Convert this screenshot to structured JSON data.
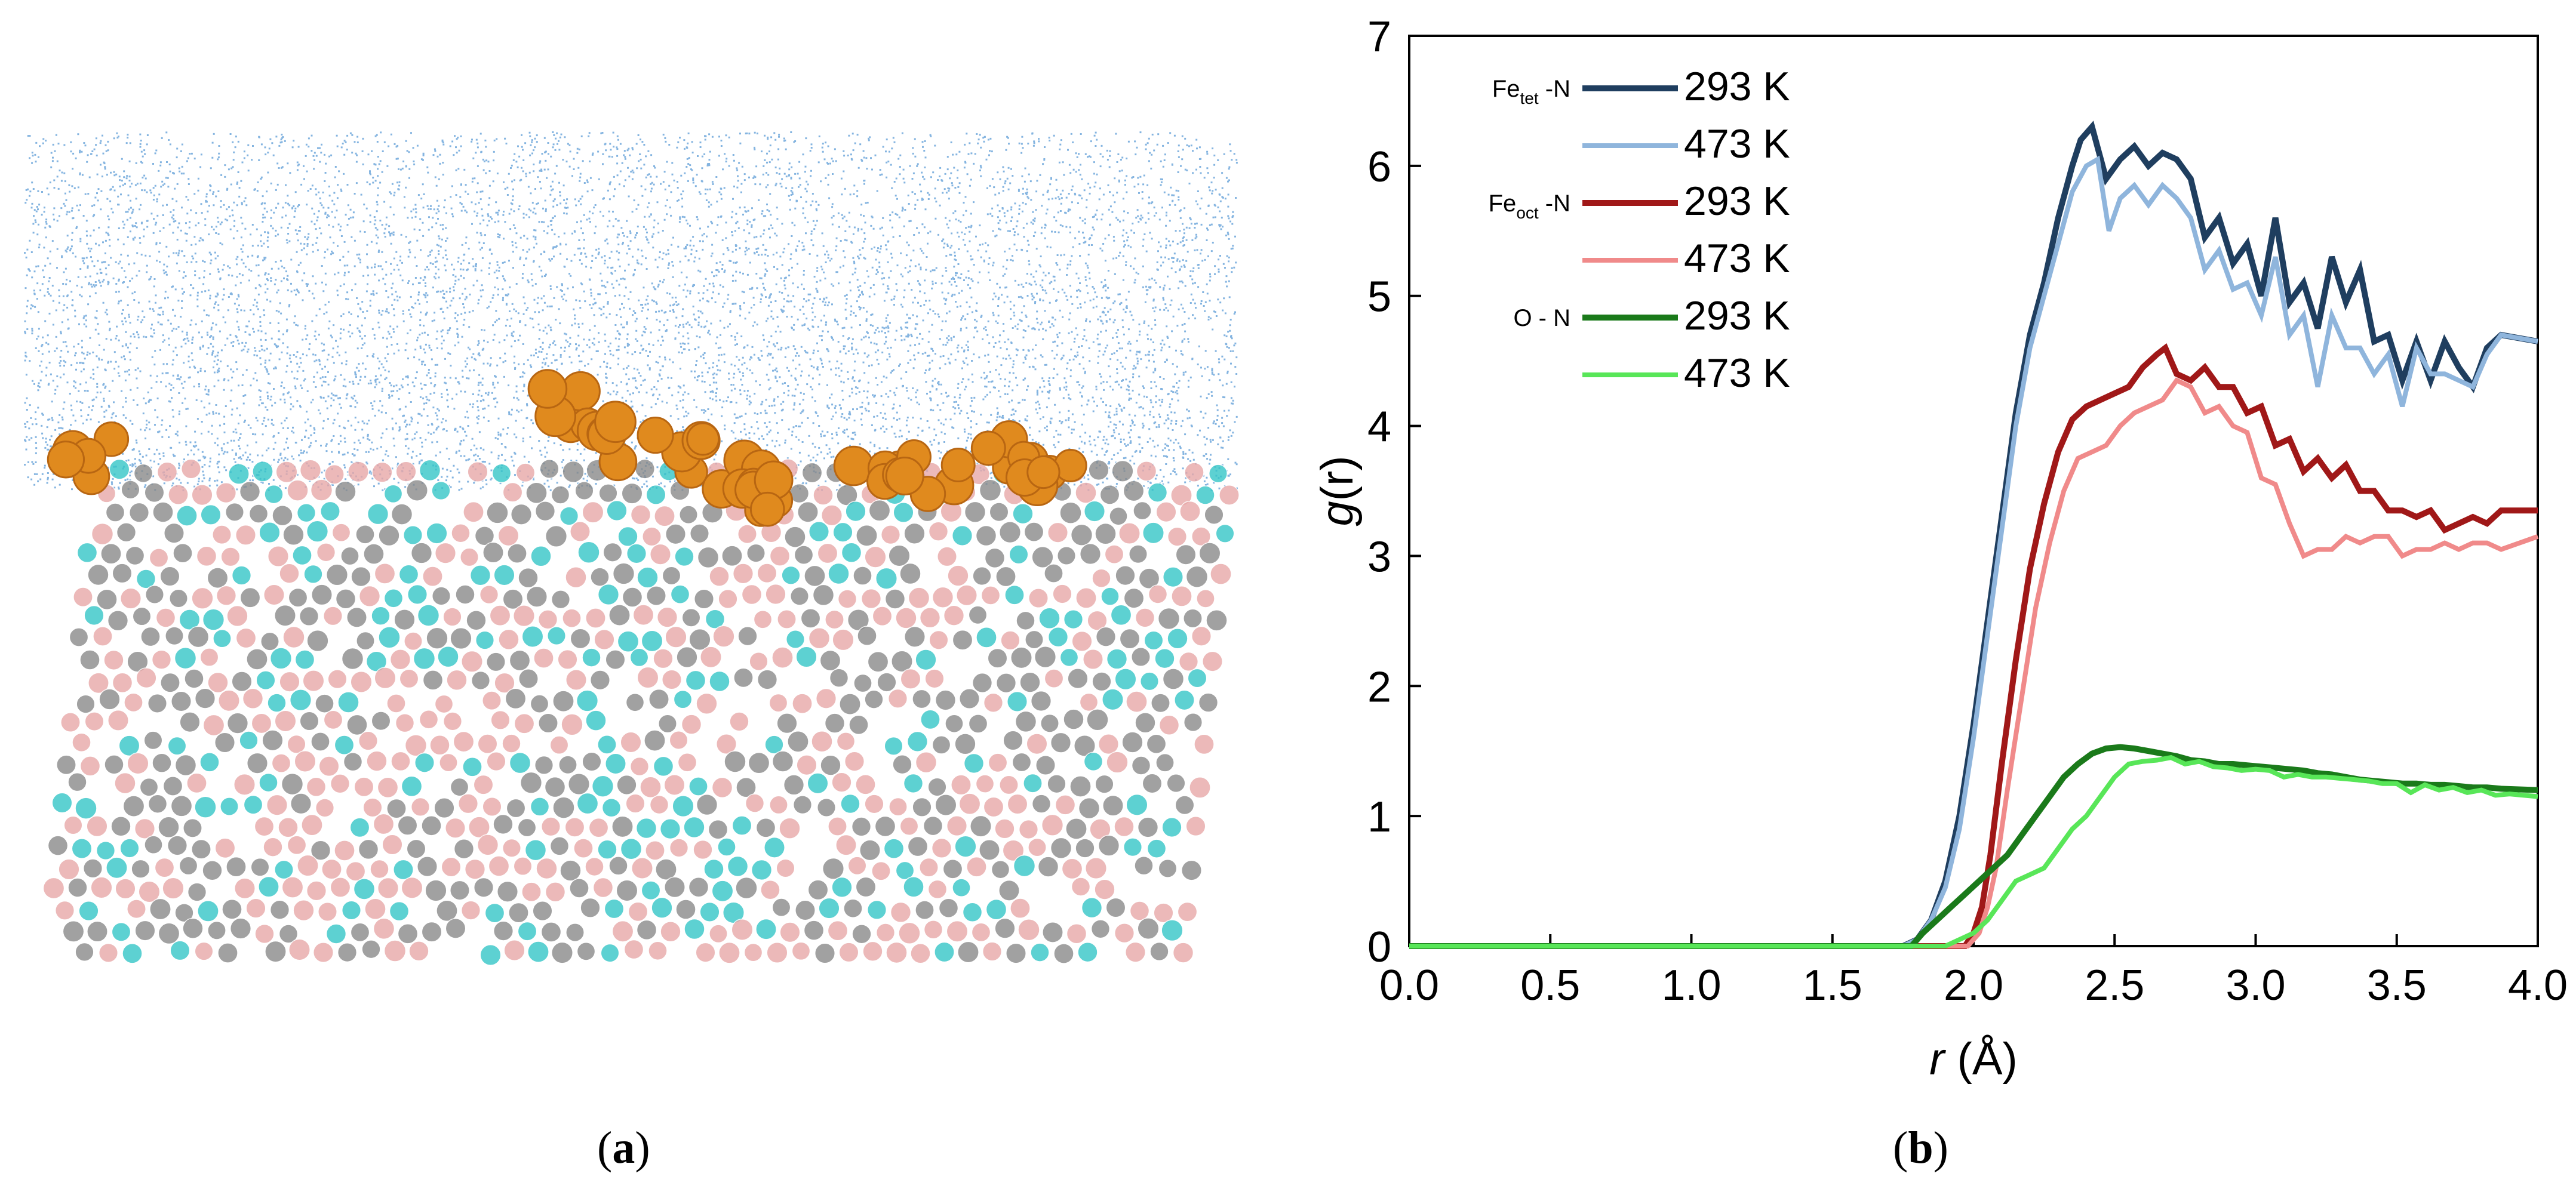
{
  "panel_a": {
    "colors": {
      "water": "#5b9bd5",
      "adsorbate": "#e08a1e",
      "atom_pink": "#e8a8a8",
      "atom_gray": "#8a8a8a",
      "atom_cyan": "#35c6c8"
    }
  },
  "captions": {
    "a_open": "(",
    "a_letter": "a",
    "a_close": ")",
    "b_open": "(",
    "b_letter": "b",
    "b_close": ")"
  },
  "chart_data": {
    "type": "line",
    "title": "",
    "xlabel_italic": "r",
    "xlabel_unit": " (Å)",
    "ylabel_italic": "g",
    "ylabel_rest": "(r)",
    "xlim": [
      0.0,
      4.0
    ],
    "ylim": [
      0,
      7
    ],
    "xticks": [
      0.0,
      0.5,
      1.0,
      1.5,
      2.0,
      2.5,
      3.0,
      3.5,
      4.0
    ],
    "xtick_labels": [
      "0.0",
      "0.5",
      "1.0",
      "1.5",
      "2.0",
      "2.5",
      "3.0",
      "3.5",
      "4.0"
    ],
    "yticks": [
      0,
      1,
      2,
      3,
      4,
      5,
      6,
      7
    ],
    "ytick_labels": [
      "0",
      "1",
      "2",
      "3",
      "4",
      "5",
      "6",
      "7"
    ],
    "legend_placement": "top-left",
    "legend_groups": [
      {
        "prefix": "Fe",
        "sub": "tet",
        "suffix": " -N"
      },
      {
        "prefix": "Fe",
        "sub": "oct",
        "suffix": " -N"
      },
      {
        "prefix": "O - N",
        "sub": "",
        "suffix": ""
      }
    ],
    "series": [
      {
        "name": "293 K",
        "group": 0,
        "color": "#1f3e5f",
        "width": 10,
        "x": [
          0,
          1.75,
          1.8,
          1.85,
          1.9,
          1.95,
          2.0,
          2.05,
          2.1,
          2.15,
          2.2,
          2.25,
          2.3,
          2.35,
          2.38,
          2.42,
          2.47,
          2.52,
          2.57,
          2.62,
          2.67,
          2.72,
          2.77,
          2.82,
          2.87,
          2.92,
          2.97,
          3.02,
          3.07,
          3.12,
          3.17,
          3.22,
          3.27,
          3.32,
          3.37,
          3.42,
          3.47,
          3.52,
          3.57,
          3.62,
          3.67,
          3.72,
          3.77,
          3.82,
          3.87,
          4.0
        ],
        "y": [
          0,
          0,
          0.05,
          0.2,
          0.5,
          1.0,
          1.7,
          2.5,
          3.3,
          4.1,
          4.7,
          5.1,
          5.6,
          6.0,
          6.2,
          6.3,
          5.9,
          6.05,
          6.15,
          6.0,
          6.1,
          6.05,
          5.9,
          5.45,
          5.6,
          5.25,
          5.4,
          5.0,
          5.6,
          4.95,
          5.1,
          4.75,
          5.3,
          4.95,
          5.2,
          4.65,
          4.7,
          4.35,
          4.65,
          4.35,
          4.65,
          4.45,
          4.3,
          4.6,
          4.7,
          4.65
        ]
      },
      {
        "name": "473 K",
        "group": 0,
        "color": "#8fb5dc",
        "width": 8,
        "x": [
          0,
          1.75,
          1.8,
          1.85,
          1.9,
          1.95,
          2.0,
          2.05,
          2.1,
          2.15,
          2.2,
          2.25,
          2.3,
          2.35,
          2.4,
          2.44,
          2.48,
          2.52,
          2.57,
          2.62,
          2.67,
          2.72,
          2.77,
          2.82,
          2.87,
          2.92,
          2.97,
          3.02,
          3.07,
          3.12,
          3.17,
          3.22,
          3.27,
          3.32,
          3.37,
          3.42,
          3.47,
          3.52,
          3.57,
          3.62,
          3.67,
          3.72,
          3.77,
          3.82,
          3.87,
          4.0
        ],
        "y": [
          0,
          0,
          0.05,
          0.2,
          0.45,
          0.9,
          1.6,
          2.4,
          3.2,
          4.0,
          4.6,
          5.0,
          5.4,
          5.8,
          6.0,
          6.05,
          5.5,
          5.75,
          5.85,
          5.7,
          5.85,
          5.75,
          5.6,
          5.2,
          5.35,
          5.05,
          5.1,
          4.85,
          5.3,
          4.7,
          4.85,
          4.3,
          4.85,
          4.6,
          4.6,
          4.4,
          4.55,
          4.15,
          4.6,
          4.4,
          4.4,
          4.35,
          4.3,
          4.55,
          4.7,
          4.65
        ]
      },
      {
        "name": "293 K",
        "group": 1,
        "color": "#a01818",
        "width": 10,
        "x": [
          0,
          1.97,
          2.0,
          2.03,
          2.06,
          2.1,
          2.15,
          2.2,
          2.25,
          2.3,
          2.35,
          2.4,
          2.45,
          2.5,
          2.55,
          2.6,
          2.65,
          2.68,
          2.72,
          2.77,
          2.82,
          2.87,
          2.92,
          2.97,
          3.02,
          3.07,
          3.12,
          3.17,
          3.22,
          3.27,
          3.32,
          3.37,
          3.42,
          3.47,
          3.52,
          3.57,
          3.62,
          3.67,
          3.72,
          3.77,
          3.82,
          3.87,
          4.0
        ],
        "y": [
          0,
          0,
          0.1,
          0.3,
          0.7,
          1.4,
          2.2,
          2.9,
          3.4,
          3.8,
          4.05,
          4.15,
          4.2,
          4.25,
          4.3,
          4.45,
          4.55,
          4.6,
          4.4,
          4.35,
          4.45,
          4.3,
          4.3,
          4.1,
          4.15,
          3.85,
          3.9,
          3.65,
          3.75,
          3.6,
          3.7,
          3.5,
          3.5,
          3.35,
          3.35,
          3.3,
          3.35,
          3.2,
          3.25,
          3.3,
          3.25,
          3.35,
          3.35
        ]
      },
      {
        "name": "473 K",
        "group": 1,
        "color": "#f08a8a",
        "width": 8,
        "x": [
          0,
          1.98,
          2.02,
          2.05,
          2.08,
          2.12,
          2.17,
          2.22,
          2.27,
          2.32,
          2.37,
          2.42,
          2.47,
          2.52,
          2.57,
          2.62,
          2.67,
          2.72,
          2.77,
          2.82,
          2.87,
          2.92,
          2.97,
          3.02,
          3.07,
          3.12,
          3.17,
          3.22,
          3.27,
          3.32,
          3.37,
          3.42,
          3.47,
          3.52,
          3.57,
          3.62,
          3.67,
          3.72,
          3.77,
          3.82,
          3.87,
          4.0
        ],
        "y": [
          0,
          0,
          0.1,
          0.3,
          0.6,
          1.2,
          1.9,
          2.6,
          3.1,
          3.5,
          3.75,
          3.8,
          3.85,
          4.0,
          4.1,
          4.15,
          4.2,
          4.35,
          4.3,
          4.1,
          4.15,
          4.0,
          3.95,
          3.6,
          3.55,
          3.25,
          3.0,
          3.05,
          3.05,
          3.15,
          3.1,
          3.15,
          3.15,
          3.0,
          3.05,
          3.05,
          3.1,
          3.05,
          3.1,
          3.1,
          3.05,
          3.15
        ]
      },
      {
        "name": "293 K",
        "group": 2,
        "color": "#1a7a1a",
        "width": 10,
        "x": [
          0,
          1.78,
          1.82,
          1.87,
          1.92,
          1.97,
          2.02,
          2.07,
          2.12,
          2.17,
          2.22,
          2.27,
          2.32,
          2.37,
          2.42,
          2.47,
          2.52,
          2.57,
          2.62,
          2.67,
          2.72,
          2.77,
          2.82,
          2.87,
          2.92,
          2.97,
          3.02,
          3.07,
          3.12,
          3.17,
          3.22,
          3.27,
          3.32,
          3.37,
          3.42,
          3.47,
          3.52,
          3.57,
          3.62,
          3.67,
          3.72,
          3.77,
          3.82,
          3.87,
          4.0
        ],
        "y": [
          0,
          0,
          0.1,
          0.2,
          0.3,
          0.4,
          0.5,
          0.6,
          0.7,
          0.85,
          1.0,
          1.15,
          1.3,
          1.4,
          1.48,
          1.52,
          1.53,
          1.52,
          1.5,
          1.48,
          1.46,
          1.43,
          1.42,
          1.4,
          1.4,
          1.39,
          1.38,
          1.37,
          1.36,
          1.35,
          1.33,
          1.32,
          1.3,
          1.28,
          1.27,
          1.26,
          1.25,
          1.25,
          1.24,
          1.24,
          1.23,
          1.22,
          1.22,
          1.21,
          1.2
        ]
      },
      {
        "name": "473 K",
        "group": 2,
        "color": "#58e658",
        "width": 8,
        "x": [
          0,
          1.9,
          1.95,
          2.0,
          2.05,
          2.1,
          2.15,
          2.2,
          2.25,
          2.3,
          2.35,
          2.4,
          2.45,
          2.5,
          2.55,
          2.6,
          2.65,
          2.7,
          2.75,
          2.8,
          2.85,
          2.9,
          2.95,
          3.0,
          3.05,
          3.1,
          3.15,
          3.2,
          3.25,
          3.3,
          3.35,
          3.4,
          3.45,
          3.5,
          3.55,
          3.6,
          3.65,
          3.7,
          3.75,
          3.8,
          3.85,
          3.9,
          4.0
        ],
        "y": [
          0,
          0,
          0.05,
          0.1,
          0.2,
          0.35,
          0.5,
          0.55,
          0.6,
          0.75,
          0.9,
          1.0,
          1.15,
          1.3,
          1.4,
          1.42,
          1.43,
          1.45,
          1.4,
          1.42,
          1.38,
          1.37,
          1.35,
          1.36,
          1.35,
          1.3,
          1.32,
          1.3,
          1.3,
          1.29,
          1.28,
          1.27,
          1.25,
          1.25,
          1.18,
          1.24,
          1.2,
          1.22,
          1.18,
          1.2,
          1.16,
          1.17,
          1.15
        ]
      }
    ]
  }
}
